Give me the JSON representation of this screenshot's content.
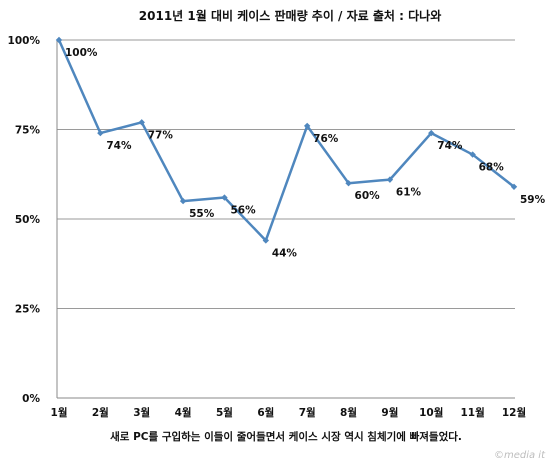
{
  "chart_data": {
    "type": "line",
    "title": "2011년 1월 대비 케이스 판매량 추이 / 자료 출처 : 다나와",
    "xlabel": "새로 PC를 구입하는 이들이 줄어들면서 케이스 시장 역시 침체기에 빠져들었다.",
    "ylabel": "",
    "categories": [
      "1월",
      "2월",
      "3월",
      "4월",
      "5월",
      "6월",
      "7월",
      "8월",
      "9월",
      "10월",
      "11월",
      "12월"
    ],
    "series": [
      {
        "values": [
          100,
          74,
          77,
          55,
          56,
          44,
          76,
          60,
          61,
          74,
          68,
          59
        ],
        "labels": [
          "100%",
          "74%",
          "77%",
          "55%",
          "56%",
          "44%",
          "76%",
          "60%",
          "61%",
          "74%",
          "68%",
          "59%"
        ]
      }
    ],
    "yticks": [
      "0%",
      "25%",
      "50%",
      "75%",
      "100%"
    ],
    "ylim": [
      0,
      100
    ],
    "grid": true,
    "colors": {
      "line": "#4f87be",
      "grid": "#9a9a9a"
    }
  },
  "watermark": "©media it"
}
